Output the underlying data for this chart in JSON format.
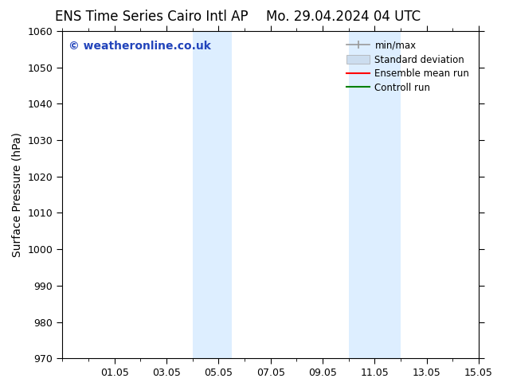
{
  "title_left": "ENS Time Series Cairo Intl AP",
  "title_right": "Mo. 29.04.2024 04 UTC",
  "ylabel": "Surface Pressure (hPa)",
  "ylim": [
    970,
    1060
  ],
  "yticks": [
    970,
    980,
    990,
    1000,
    1010,
    1020,
    1030,
    1040,
    1050,
    1060
  ],
  "xlim": [
    0,
    16
  ],
  "xtick_labels": [
    "01.05",
    "03.05",
    "05.05",
    "07.05",
    "09.05",
    "11.05",
    "13.05",
    "15.05"
  ],
  "xtick_positions": [
    2,
    4,
    6,
    8,
    10,
    12,
    14,
    16
  ],
  "minor_xtick_positions": [
    0,
    1,
    2,
    3,
    4,
    5,
    6,
    7,
    8,
    9,
    10,
    11,
    12,
    13,
    14,
    15,
    16
  ],
  "shaded_bands": [
    {
      "x_start": 5,
      "x_end": 6.5
    },
    {
      "x_start": 11,
      "x_end": 13
    }
  ],
  "shaded_color": "#ddeeff",
  "watermark_text": "© weatheronline.co.uk",
  "watermark_color": "#2244bb",
  "watermark_fontsize": 10,
  "legend_entries": [
    {
      "label": "min/max",
      "color": "#999999",
      "lw": 1.2
    },
    {
      "label": "Standard deviation",
      "color": "#ccddef",
      "lw": 8
    },
    {
      "label": "Ensemble mean run",
      "color": "red",
      "lw": 1.5
    },
    {
      "label": "Controll run",
      "color": "green",
      "lw": 1.5
    }
  ],
  "bg_color": "#ffffff",
  "title_fontsize": 12,
  "axis_label_fontsize": 10,
  "tick_fontsize": 9
}
